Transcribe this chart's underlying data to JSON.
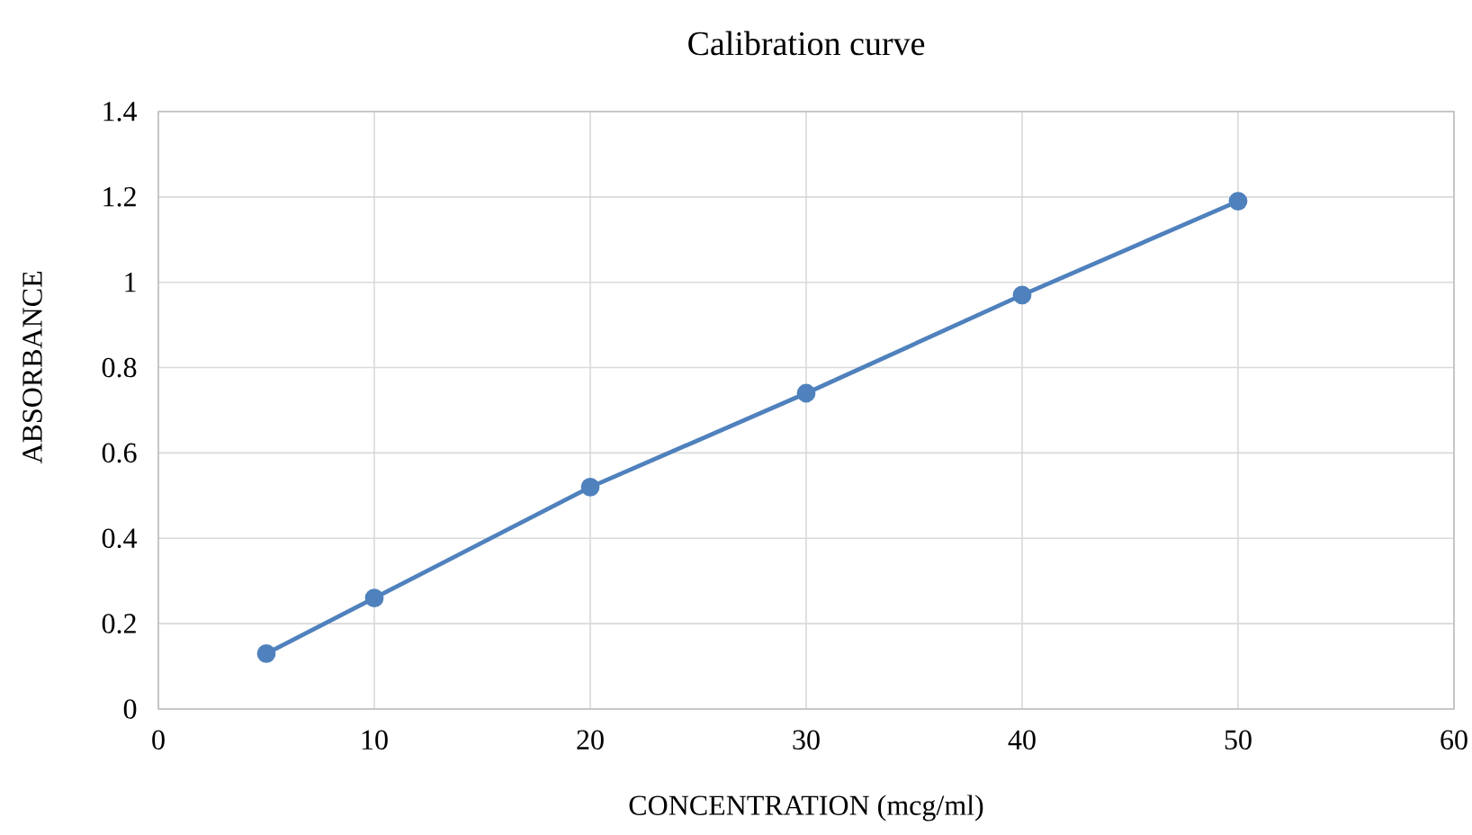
{
  "chart_data": {
    "type": "line",
    "title": "Calibration  curve",
    "xlabel": "CONCENTRATION (mcg/ml)",
    "ylabel": "ABSORBANCE",
    "x": [
      5,
      10,
      20,
      30,
      40,
      50
    ],
    "series": [
      {
        "color": "#4f81bd",
        "values": [
          0.13,
          0.26,
          0.52,
          0.74,
          0.97,
          1.19
        ]
      }
    ],
    "xlim": [
      0,
      60
    ],
    "ylim": [
      0,
      1.4
    ],
    "xticks": [
      0,
      10,
      20,
      30,
      40,
      50,
      60
    ],
    "yticks": [
      0,
      0.2,
      0.4,
      0.6,
      0.8,
      1,
      1.2,
      1.4
    ],
    "grid": true,
    "marker": "circle",
    "line_style": "solid"
  }
}
